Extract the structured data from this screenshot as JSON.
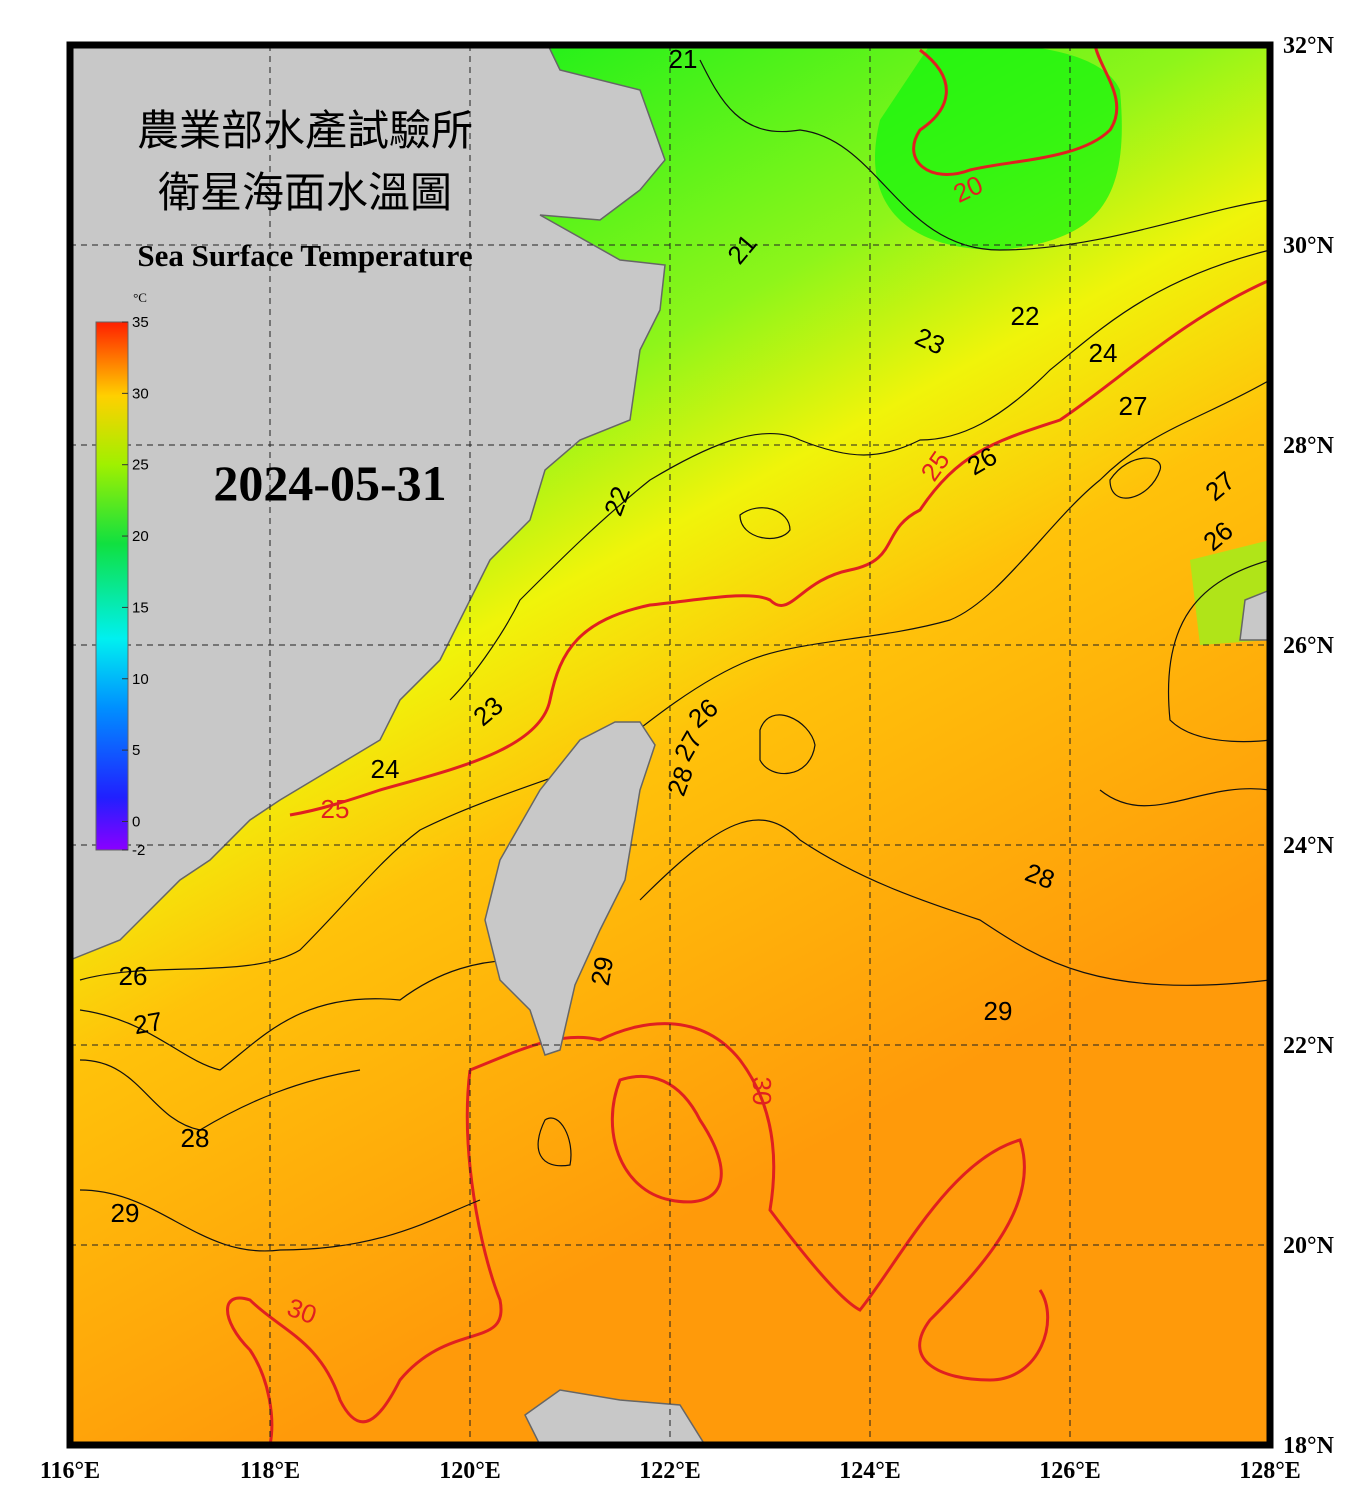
{
  "header": {
    "title_zh_1": "農業部水產試驗所",
    "title_zh_2": "衛星海面水溫圖",
    "title_en": "Sea Surface Temperature",
    "date": "2024-05-31"
  },
  "map": {
    "lonlim": [
      116,
      128
    ],
    "latlim": [
      18,
      32
    ],
    "lon_ticks": [
      {
        "value": 116,
        "label": "116°E"
      },
      {
        "value": 118,
        "label": "118°E"
      },
      {
        "value": 120,
        "label": "120°E"
      },
      {
        "value": 122,
        "label": "122°E"
      },
      {
        "value": 124,
        "label": "124°E"
      },
      {
        "value": 126,
        "label": "126°E"
      },
      {
        "value": 128,
        "label": "128°E"
      }
    ],
    "lat_ticks": [
      {
        "value": 18,
        "label": "18°N"
      },
      {
        "value": 20,
        "label": "20°N"
      },
      {
        "value": 22,
        "label": "22°N"
      },
      {
        "value": 24,
        "label": "24°N"
      },
      {
        "value": 26,
        "label": "26°N"
      },
      {
        "value": 28,
        "label": "28°N"
      },
      {
        "value": 30,
        "label": "30°N"
      },
      {
        "value": 32,
        "label": "32°N"
      }
    ],
    "contour_labels": [
      21,
      21,
      20,
      22,
      23,
      24,
      27,
      26,
      25,
      22,
      27,
      26,
      26,
      27,
      28,
      23,
      24,
      25,
      28,
      26,
      27,
      29,
      29,
      30,
      28,
      29,
      30
    ]
  },
  "colorbar": {
    "unit": "°C",
    "lim": [
      -2,
      35
    ],
    "ticks": [
      35,
      30,
      25,
      20,
      15,
      10,
      5,
      0,
      -2
    ]
  }
}
